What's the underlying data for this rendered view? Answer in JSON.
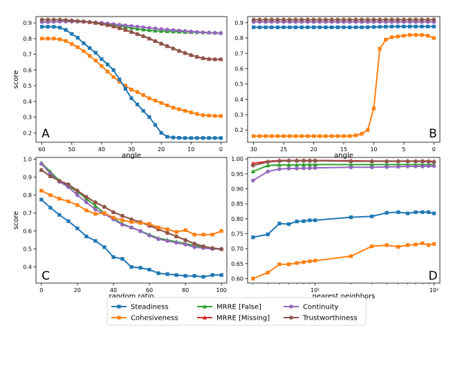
{
  "colors": {
    "Steadiness": "#1f77b4",
    "Cohesiveness": "#ff7f0e",
    "MRRE [False]": "#2ca02c",
    "MRRE [Missing]": "#d62728",
    "Continuity": "#9467bd",
    "Trustworthiness": "#8c564b"
  },
  "markers": {
    "Steadiness": "square",
    "Cohesiveness": "square",
    "MRRE [False]": "triangle",
    "MRRE [Missing]": "triangle",
    "Continuity": "circle",
    "Trustworthiness": "circle"
  },
  "legend": {
    "placement": "bottom-center",
    "entries": [
      "Steadiness",
      "Cohesiveness",
      "MRRE [False]",
      "MRRE [Missing]",
      "Continuity",
      "Trustworthiness"
    ]
  },
  "chart_data": [
    {
      "panel": "A",
      "type": "line",
      "xlabel": "angle",
      "ylabel": "score",
      "xlim": [
        62,
        -2
      ],
      "ylim": [
        0.14,
        0.94
      ],
      "xticks": [
        60,
        50,
        40,
        30,
        20,
        10,
        0
      ],
      "yticks": [
        0.2,
        0.3,
        0.4,
        0.5,
        0.6,
        0.7,
        0.8,
        0.9
      ],
      "x": [
        60,
        58,
        56,
        54,
        52,
        50,
        48,
        46,
        44,
        42,
        40,
        38,
        36,
        34,
        32,
        30,
        28,
        26,
        24,
        22,
        20,
        18,
        16,
        14,
        12,
        10,
        8,
        6,
        4,
        2,
        0
      ],
      "series": [
        {
          "name": "Steadiness",
          "values": [
            0.875,
            0.875,
            0.875,
            0.87,
            0.855,
            0.83,
            0.805,
            0.77,
            0.74,
            0.71,
            0.67,
            0.635,
            0.6,
            0.54,
            0.48,
            0.42,
            0.38,
            0.34,
            0.3,
            0.25,
            0.2,
            0.175,
            0.17,
            0.168,
            0.167,
            0.167,
            0.167,
            0.167,
            0.167,
            0.167,
            0.167
          ]
        },
        {
          "name": "Cohesiveness",
          "values": [
            0.8,
            0.8,
            0.8,
            0.795,
            0.785,
            0.765,
            0.745,
            0.72,
            0.69,
            0.66,
            0.625,
            0.59,
            0.555,
            0.525,
            0.5,
            0.475,
            0.46,
            0.44,
            0.42,
            0.405,
            0.39,
            0.375,
            0.36,
            0.35,
            0.34,
            0.33,
            0.32,
            0.312,
            0.31,
            0.308,
            0.307
          ]
        },
        {
          "name": "MRRE [False]",
          "values": [
            0.92,
            0.92,
            0.92,
            0.92,
            0.918,
            0.915,
            0.913,
            0.91,
            0.906,
            0.902,
            0.897,
            0.892,
            0.886,
            0.88,
            0.874,
            0.868,
            0.862,
            0.857,
            0.853,
            0.85,
            0.848,
            0.846,
            0.845,
            0.843,
            0.842,
            0.841,
            0.84,
            0.839,
            0.838,
            0.837,
            0.836
          ]
        },
        {
          "name": "MRRE [Missing]",
          "values": [
            0.92,
            0.92,
            0.92,
            0.92,
            0.918,
            0.915,
            0.912,
            0.909,
            0.905,
            0.9,
            0.894,
            0.886,
            0.877,
            0.866,
            0.855,
            0.842,
            0.829,
            0.815,
            0.8,
            0.784,
            0.768,
            0.752,
            0.737,
            0.722,
            0.708,
            0.695,
            0.684,
            0.675,
            0.67,
            0.668,
            0.668
          ]
        },
        {
          "name": "Continuity",
          "values": [
            0.905,
            0.905,
            0.907,
            0.908,
            0.908,
            0.908,
            0.908,
            0.907,
            0.905,
            0.902,
            0.9,
            0.896,
            0.892,
            0.888,
            0.884,
            0.88,
            0.876,
            0.872,
            0.868,
            0.864,
            0.86,
            0.857,
            0.854,
            0.851,
            0.848,
            0.845,
            0.842,
            0.84,
            0.838,
            0.836,
            0.835
          ]
        },
        {
          "name": "Trustworthiness",
          "values": [
            0.92,
            0.92,
            0.92,
            0.92,
            0.918,
            0.915,
            0.912,
            0.909,
            0.905,
            0.9,
            0.894,
            0.886,
            0.877,
            0.866,
            0.855,
            0.842,
            0.829,
            0.815,
            0.8,
            0.784,
            0.768,
            0.752,
            0.737,
            0.722,
            0.708,
            0.695,
            0.684,
            0.675,
            0.67,
            0.668,
            0.668
          ]
        }
      ]
    },
    {
      "panel": "B",
      "type": "line",
      "xlabel": "angle",
      "ylabel": "",
      "xlim": [
        31,
        -1
      ],
      "ylim": [
        0.12,
        0.94
      ],
      "xticks": [
        30,
        25,
        20,
        15,
        10,
        5,
        0
      ],
      "yticks": [
        0.2,
        0.3,
        0.4,
        0.5,
        0.6,
        0.7,
        0.8,
        0.9
      ],
      "x": [
        30,
        29,
        28,
        27,
        26,
        25,
        24,
        23,
        22,
        21,
        20,
        19,
        18,
        17,
        16,
        15,
        14,
        13,
        12,
        11,
        10,
        9,
        8,
        7,
        6,
        5,
        4,
        3,
        2,
        1,
        0
      ],
      "series": [
        {
          "name": "Steadiness",
          "values": [
            0.87,
            0.87,
            0.87,
            0.87,
            0.87,
            0.87,
            0.87,
            0.87,
            0.87,
            0.87,
            0.87,
            0.87,
            0.87,
            0.87,
            0.87,
            0.87,
            0.87,
            0.87,
            0.87,
            0.871,
            0.872,
            0.873,
            0.874,
            0.875,
            0.875,
            0.875,
            0.875,
            0.875,
            0.875,
            0.875,
            0.875
          ]
        },
        {
          "name": "Cohesiveness",
          "values": [
            0.16,
            0.16,
            0.16,
            0.16,
            0.16,
            0.16,
            0.16,
            0.16,
            0.16,
            0.16,
            0.16,
            0.16,
            0.16,
            0.16,
            0.16,
            0.16,
            0.16,
            0.165,
            0.175,
            0.2,
            0.34,
            0.73,
            0.79,
            0.805,
            0.81,
            0.815,
            0.82,
            0.82,
            0.82,
            0.815,
            0.8
          ]
        },
        {
          "name": "MRRE [False]",
          "values": [
            0.92,
            0.92,
            0.92,
            0.92,
            0.92,
            0.92,
            0.92,
            0.92,
            0.92,
            0.92,
            0.92,
            0.92,
            0.92,
            0.92,
            0.92,
            0.92,
            0.92,
            0.92,
            0.92,
            0.92,
            0.92,
            0.92,
            0.92,
            0.92,
            0.92,
            0.92,
            0.92,
            0.92,
            0.92,
            0.92,
            0.92
          ]
        },
        {
          "name": "MRRE [Missing]",
          "values": [
            0.92,
            0.92,
            0.92,
            0.92,
            0.92,
            0.92,
            0.92,
            0.92,
            0.92,
            0.92,
            0.92,
            0.92,
            0.92,
            0.92,
            0.92,
            0.92,
            0.92,
            0.92,
            0.92,
            0.92,
            0.92,
            0.92,
            0.92,
            0.92,
            0.92,
            0.92,
            0.92,
            0.92,
            0.92,
            0.92,
            0.92
          ]
        },
        {
          "name": "Continuity",
          "values": [
            0.905,
            0.905,
            0.905,
            0.905,
            0.905,
            0.905,
            0.905,
            0.905,
            0.905,
            0.905,
            0.905,
            0.905,
            0.905,
            0.905,
            0.905,
            0.905,
            0.905,
            0.905,
            0.905,
            0.905,
            0.905,
            0.905,
            0.905,
            0.905,
            0.905,
            0.905,
            0.905,
            0.905,
            0.905,
            0.905,
            0.905
          ]
        },
        {
          "name": "Trustworthiness",
          "values": [
            0.92,
            0.92,
            0.92,
            0.92,
            0.92,
            0.92,
            0.92,
            0.92,
            0.92,
            0.92,
            0.92,
            0.92,
            0.92,
            0.92,
            0.92,
            0.92,
            0.92,
            0.92,
            0.92,
            0.92,
            0.92,
            0.92,
            0.92,
            0.92,
            0.92,
            0.92,
            0.92,
            0.92,
            0.92,
            0.92,
            0.92
          ]
        }
      ]
    },
    {
      "panel": "C",
      "type": "line",
      "xlabel": "random ratio",
      "ylabel": "score",
      "xlim": [
        -3,
        103
      ],
      "ylim": [
        0.31,
        1.01
      ],
      "xticks": [
        0,
        20,
        40,
        60,
        80,
        100
      ],
      "yticks": [
        0.4,
        0.5,
        0.6,
        0.7,
        0.8,
        0.9,
        1.0
      ],
      "x": [
        0,
        5,
        10,
        15,
        20,
        25,
        30,
        35,
        40,
        45,
        50,
        55,
        60,
        65,
        70,
        75,
        80,
        85,
        90,
        95,
        100
      ],
      "series": [
        {
          "name": "Steadiness",
          "values": [
            0.775,
            0.73,
            0.69,
            0.655,
            0.615,
            0.57,
            0.545,
            0.51,
            0.455,
            0.445,
            0.4,
            0.395,
            0.385,
            0.365,
            0.36,
            0.355,
            0.35,
            0.35,
            0.345,
            0.355,
            0.355
          ]
        },
        {
          "name": "Cohesiveness",
          "values": [
            0.825,
            0.8,
            0.78,
            0.765,
            0.745,
            0.715,
            0.695,
            0.7,
            0.675,
            0.66,
            0.65,
            0.645,
            0.64,
            0.62,
            0.61,
            0.595,
            0.605,
            0.58,
            0.58,
            0.58,
            0.6
          ]
        },
        {
          "name": "MRRE [False]",
          "values": [
            0.98,
            0.93,
            0.88,
            0.85,
            0.82,
            0.78,
            0.74,
            0.7,
            0.67,
            0.64,
            0.62,
            0.6,
            0.58,
            0.56,
            0.55,
            0.54,
            0.53,
            0.52,
            0.51,
            0.505,
            0.5
          ]
        },
        {
          "name": "MRRE [Missing]",
          "values": [
            0.94,
            0.905,
            0.88,
            0.86,
            0.825,
            0.79,
            0.76,
            0.735,
            0.705,
            0.685,
            0.665,
            0.65,
            0.63,
            0.61,
            0.59,
            0.57,
            0.55,
            0.53,
            0.515,
            0.505,
            0.5
          ]
        },
        {
          "name": "Continuity",
          "values": [
            0.975,
            0.92,
            0.875,
            0.845,
            0.8,
            0.76,
            0.72,
            0.695,
            0.665,
            0.635,
            0.62,
            0.6,
            0.575,
            0.555,
            0.545,
            0.535,
            0.525,
            0.51,
            0.505,
            0.5,
            0.5
          ]
        },
        {
          "name": "Trustworthiness",
          "values": [
            0.94,
            0.905,
            0.88,
            0.86,
            0.825,
            0.79,
            0.76,
            0.735,
            0.705,
            0.685,
            0.665,
            0.65,
            0.63,
            0.61,
            0.59,
            0.57,
            0.55,
            0.53,
            0.515,
            0.505,
            0.5
          ]
        }
      ]
    },
    {
      "panel": "D",
      "type": "line",
      "xlabel": "nearest neighbors",
      "ylabel": "",
      "xscale": "log",
      "xlim": [
        2.7,
        112
      ],
      "ylim": [
        0.585,
        1.005
      ],
      "xticks": [
        10,
        100
      ],
      "xtick_labels": [
        "10¹",
        "10²"
      ],
      "yticks": [
        0.6,
        0.65,
        0.7,
        0.75,
        0.8,
        0.85,
        0.9,
        0.95,
        1.0
      ],
      "x": [
        3,
        4,
        5,
        6,
        7,
        8,
        9,
        10,
        20,
        30,
        40,
        50,
        60,
        70,
        80,
        90,
        100
      ],
      "series": [
        {
          "name": "Steadiness",
          "values": [
            0.738,
            0.748,
            0.784,
            0.782,
            0.791,
            0.792,
            0.795,
            0.795,
            0.805,
            0.808,
            0.82,
            0.822,
            0.818,
            0.822,
            0.822,
            0.822,
            0.818
          ]
        },
        {
          "name": "Cohesiveness",
          "values": [
            0.6,
            0.62,
            0.648,
            0.648,
            0.652,
            0.655,
            0.658,
            0.66,
            0.675,
            0.708,
            0.712,
            0.706,
            0.712,
            0.714,
            0.718,
            0.712,
            0.716
          ]
        },
        {
          "name": "MRRE [False]",
          "values": [
            0.958,
            0.978,
            0.98,
            0.98,
            0.98,
            0.981,
            0.981,
            0.981,
            0.981,
            0.981,
            0.981,
            0.981,
            0.981,
            0.981,
            0.981,
            0.981,
            0.981
          ]
        },
        {
          "name": "MRRE [Missing]",
          "values": [
            0.985,
            0.992,
            0.995,
            0.995,
            0.995,
            0.995,
            0.995,
            0.995,
            0.994,
            0.993,
            0.993,
            0.993,
            0.993,
            0.993,
            0.993,
            0.993,
            0.992
          ]
        },
        {
          "name": "Continuity",
          "values": [
            0.928,
            0.958,
            0.966,
            0.968,
            0.968,
            0.969,
            0.969,
            0.97,
            0.972,
            0.972,
            0.973,
            0.974,
            0.975,
            0.975,
            0.975,
            0.976,
            0.976
          ]
        },
        {
          "name": "Trustworthiness",
          "values": [
            0.978,
            0.99,
            0.993,
            0.994,
            0.994,
            0.994,
            0.994,
            0.994,
            0.992,
            0.992,
            0.992,
            0.992,
            0.992,
            0.992,
            0.992,
            0.991,
            0.99
          ]
        }
      ]
    }
  ]
}
